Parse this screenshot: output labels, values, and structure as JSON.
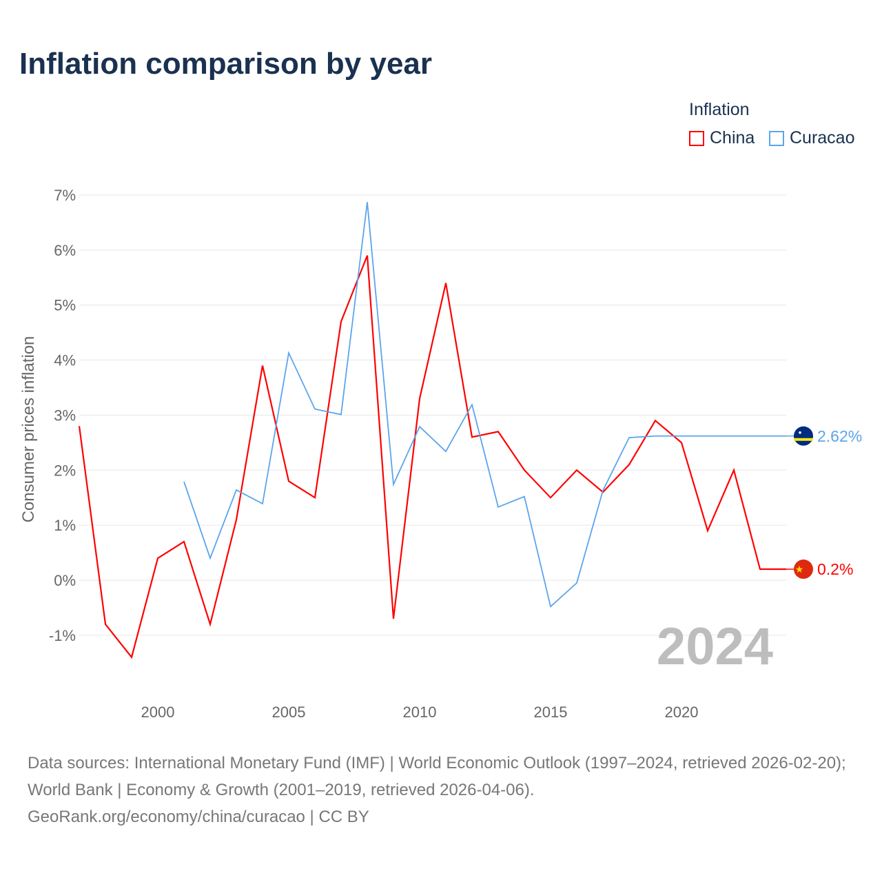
{
  "title": "Inflation comparison by year",
  "legend": {
    "title": "Inflation",
    "items": [
      "China",
      "Curacao"
    ]
  },
  "year_badge": "2024",
  "source_lines": [
    "Data sources: International Monetary Fund (IMF) | World Economic Outlook (1997–2024, retrieved 2026-02-20); World Bank | Economy & Growth (2001–2019, retrieved 2026-04-06).",
    "GeoRank.org/economy/china/curacao | CC BY"
  ],
  "chart_data": {
    "type": "line",
    "title": "Inflation comparison by year",
    "xlabel": "",
    "ylabel": "Consumer prices inflation",
    "xlim": [
      1997,
      2024
    ],
    "ylim": [
      -2,
      7
    ],
    "xticks": [
      2000,
      2005,
      2010,
      2015,
      2020
    ],
    "yticks": [
      -1,
      0,
      1,
      2,
      3,
      4,
      5,
      6,
      7
    ],
    "ytick_labels": [
      "-1%",
      "0%",
      "1%",
      "2%",
      "3%",
      "4%",
      "5%",
      "6%",
      "7%"
    ],
    "grid": true,
    "legend_position": "top-right",
    "series": [
      {
        "name": "China",
        "color": "#ff0000",
        "end_label": "0.2%",
        "x": [
          1997,
          1998,
          1999,
          2000,
          2001,
          2002,
          2003,
          2004,
          2005,
          2006,
          2007,
          2008,
          2009,
          2010,
          2011,
          2012,
          2013,
          2014,
          2015,
          2016,
          2017,
          2018,
          2019,
          2020,
          2021,
          2022,
          2023,
          2024
        ],
        "y": [
          2.8,
          -0.8,
          -1.4,
          0.4,
          0.7,
          -0.8,
          1.1,
          3.9,
          1.8,
          1.5,
          4.7,
          5.9,
          -0.7,
          3.3,
          5.4,
          2.6,
          2.7,
          2.0,
          1.5,
          2.0,
          1.6,
          2.1,
          2.9,
          2.5,
          0.9,
          2.0,
          0.2,
          0.2
        ]
      },
      {
        "name": "Curacao",
        "color": "#5aa5ec",
        "end_label": "2.62%",
        "x": [
          2001,
          2002,
          2003,
          2004,
          2005,
          2006,
          2007,
          2008,
          2009,
          2010,
          2011,
          2012,
          2013,
          2014,
          2015,
          2016,
          2017,
          2018,
          2019
        ],
        "y": [
          1.79,
          0.4,
          1.64,
          1.39,
          4.13,
          3.11,
          3.01,
          6.87,
          1.74,
          2.79,
          2.34,
          3.19,
          1.33,
          1.52,
          -0.48,
          -0.05,
          1.63,
          2.59,
          2.62
        ]
      }
    ]
  }
}
